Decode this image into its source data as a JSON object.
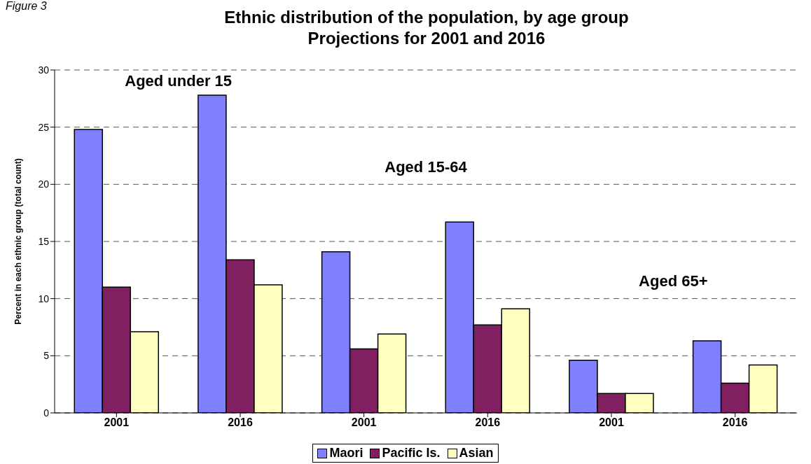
{
  "chart_data": {
    "type": "bar",
    "title": "Ethnic distribution of the population, by age group",
    "subtitle": "Projections for 2001 and 2016",
    "ylabel": "Percent in each ethnic group (total count)",
    "categories": [
      "2001",
      "2016",
      "2001",
      "2016",
      "2001",
      "2016"
    ],
    "series": [
      {
        "name": "Maori",
        "color": "#8080ff",
        "values": [
          24.8,
          27.8,
          14.1,
          16.7,
          4.6,
          6.3
        ]
      },
      {
        "name": "Pacific Is.",
        "color": "#802060",
        "values": [
          11.0,
          13.4,
          5.6,
          7.7,
          1.7,
          2.6
        ]
      },
      {
        "name": "Asian",
        "color": "#ffffc0",
        "values": [
          7.1,
          11.2,
          6.9,
          9.1,
          1.7,
          4.2
        ]
      }
    ],
    "ylim": [
      0,
      30
    ],
    "yticks": [
      0,
      5,
      10,
      15,
      20,
      25,
      30
    ],
    "grid": "y",
    "legend": "bottom",
    "annotations": [
      "Figure 3",
      "Aged under 15",
      "Aged 15-64",
      "Aged 65+"
    ]
  }
}
